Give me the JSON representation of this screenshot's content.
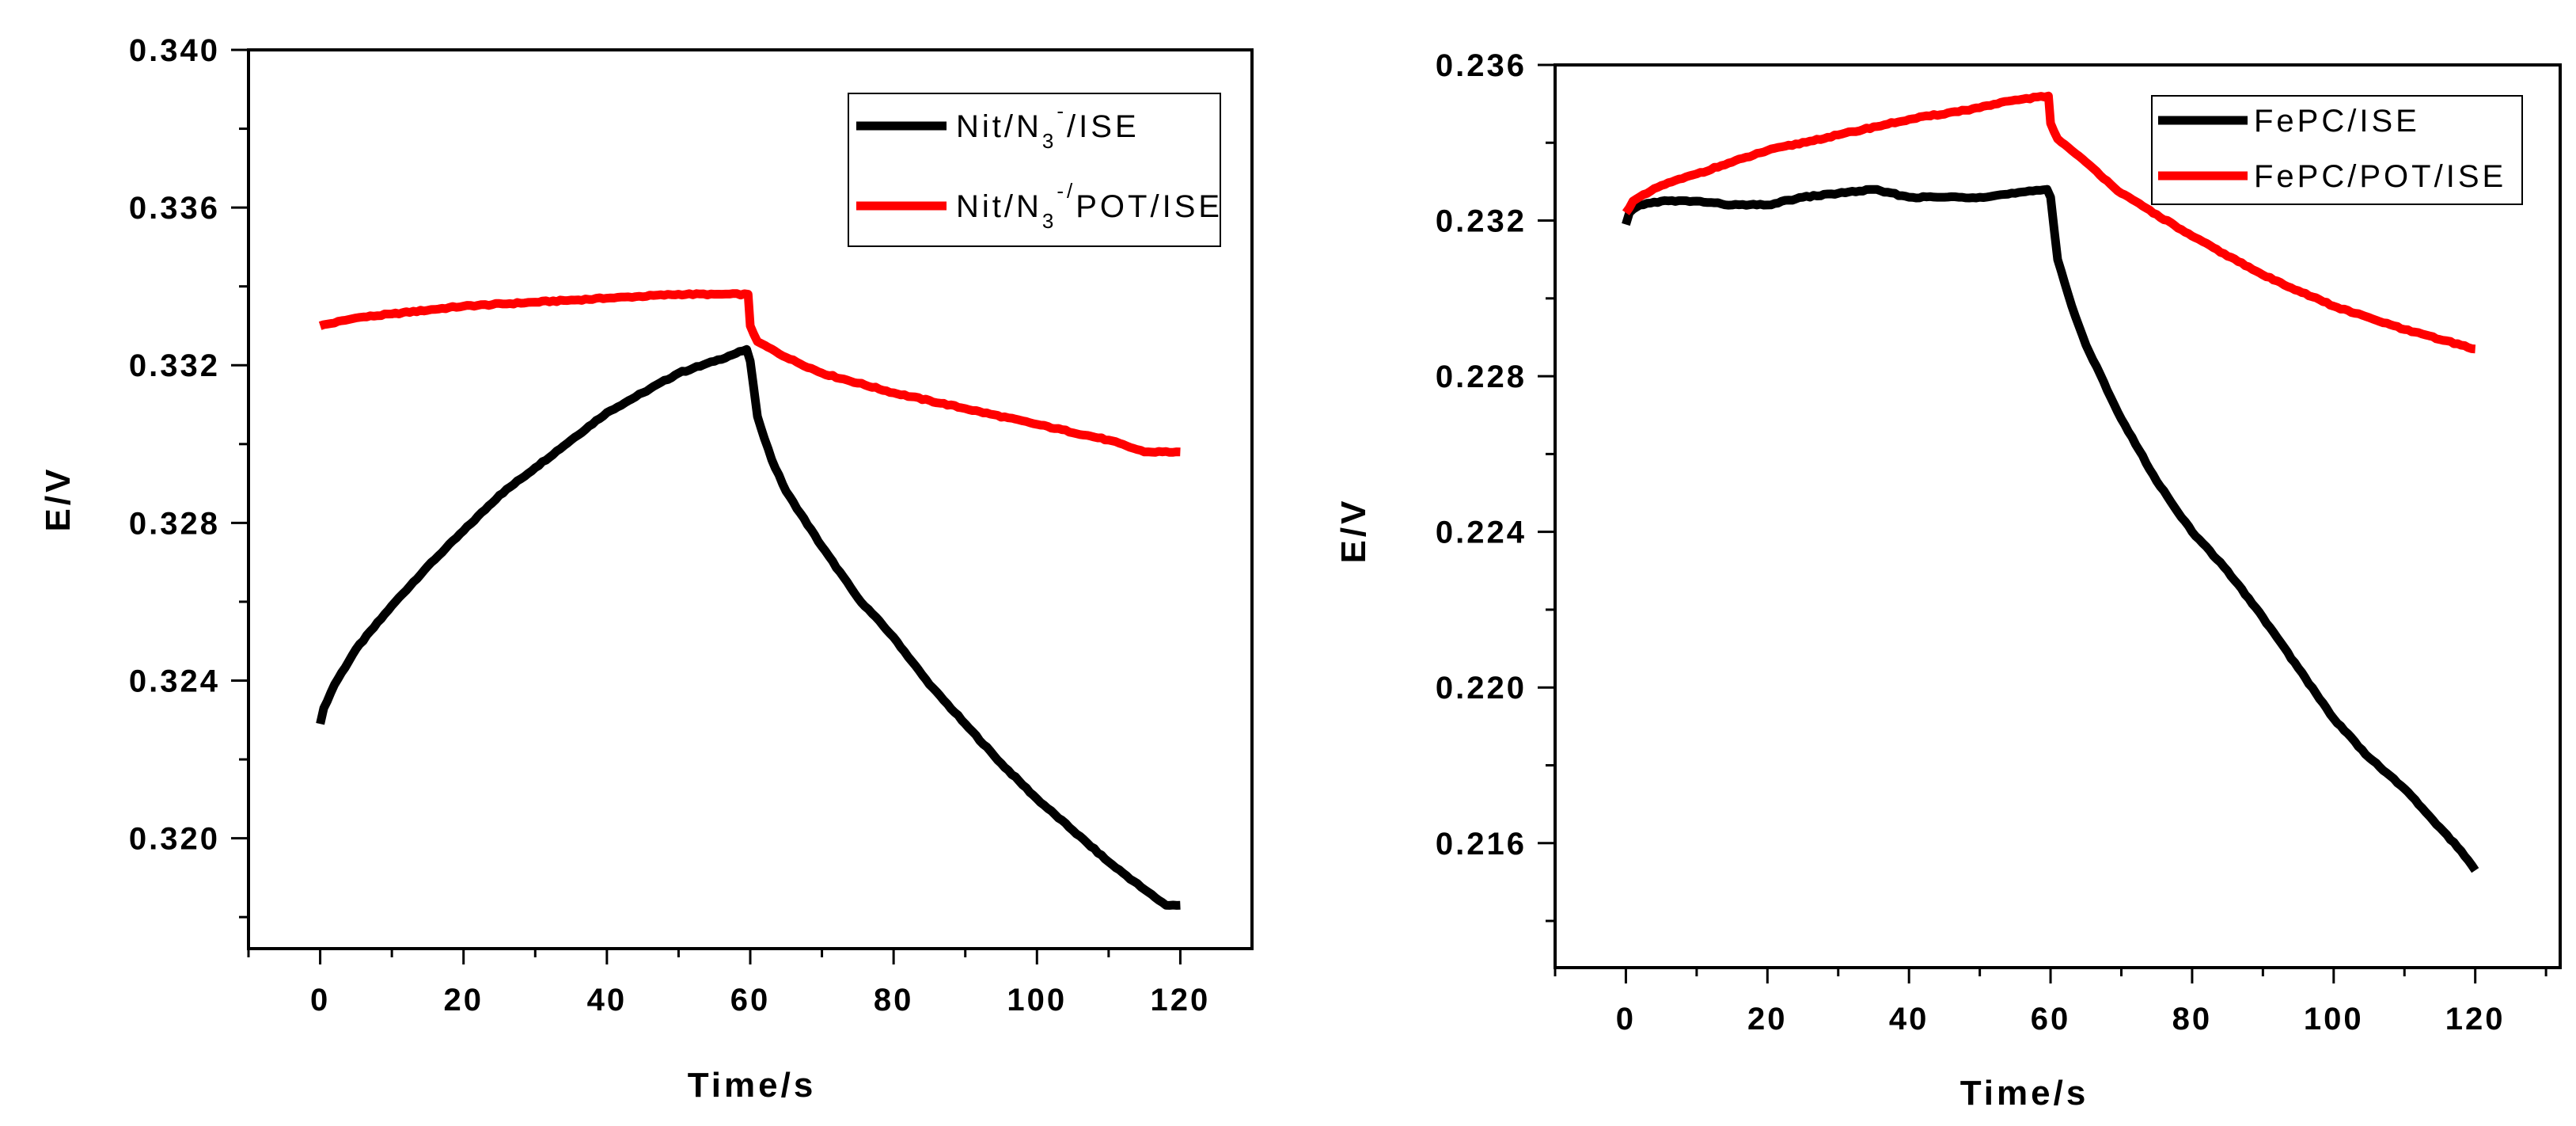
{
  "chart_data": [
    {
      "type": "line",
      "xlabel": "Time/s",
      "ylabel": "E/V",
      "xlim": [
        -10,
        130
      ],
      "ylim": [
        0.3172,
        0.34
      ],
      "xticks": [
        0,
        20,
        40,
        60,
        80,
        100,
        120
      ],
      "yticks": [
        0.32,
        0.324,
        0.328,
        0.332,
        0.336,
        0.34
      ],
      "xtick_labels": [
        "0",
        "20",
        "40",
        "60",
        "80",
        "100",
        "120"
      ],
      "ytick_labels": [
        "0.320",
        "0.324",
        "0.328",
        "0.332",
        "0.336",
        "0.340"
      ],
      "legend_position": "top-right",
      "series": [
        {
          "name": "Nit/N3-/ISE",
          "legend_parts": [
            "Nit/N",
            "3",
            "-",
            "/ISE"
          ],
          "color": "#000000",
          "x": [
            0,
            0.5,
            2,
            5,
            10,
            15,
            20,
            25,
            30,
            35,
            40,
            45,
            50,
            55,
            59.5,
            60,
            61,
            63,
            65,
            70,
            75,
            80,
            85,
            90,
            95,
            100,
            105,
            110,
            115,
            118,
            120
          ],
          "y": [
            0.3229,
            0.3233,
            0.3239,
            0.3248,
            0.3259,
            0.3269,
            0.3278,
            0.3287,
            0.3294,
            0.3301,
            0.3308,
            0.3313,
            0.3318,
            0.3321,
            0.3324,
            0.3321,
            0.3307,
            0.3296,
            0.3288,
            0.3274,
            0.3261,
            0.3251,
            0.3239,
            0.3229,
            0.3219,
            0.321,
            0.3202,
            0.3194,
            0.3187,
            0.3183,
            0.3183
          ]
        },
        {
          "name": "Nit/N3-/POT/ISE",
          "legend_parts": [
            "Nit/N",
            "3",
            "-/",
            "POT/ISE"
          ],
          "color": "#ff0000",
          "x": [
            0,
            5,
            10,
            20,
            30,
            40,
            50,
            55,
            59.7,
            60,
            61,
            65,
            70,
            80,
            90,
            100,
            110,
            115,
            120
          ],
          "y": [
            0.333,
            0.3332,
            0.3333,
            0.3335,
            0.3336,
            0.3337,
            0.3338,
            0.3338,
            0.3338,
            0.333,
            0.3326,
            0.3322,
            0.3318,
            0.3313,
            0.3309,
            0.3305,
            0.3301,
            0.3298,
            0.3298
          ]
        }
      ]
    },
    {
      "type": "line",
      "xlabel": "Time/s",
      "ylabel": "E/V",
      "xlim": [
        -10,
        132
      ],
      "ylim": [
        0.2128,
        0.236
      ],
      "xticks": [
        0,
        20,
        40,
        60,
        80,
        100,
        120
      ],
      "yticks": [
        0.216,
        0.22,
        0.224,
        0.228,
        0.232,
        0.236
      ],
      "xtick_labels": [
        "0",
        "20",
        "40",
        "60",
        "80",
        "100",
        "120"
      ],
      "ytick_labels": [
        "0.216",
        "0.220",
        "0.224",
        "0.228",
        "0.232",
        "0.236"
      ],
      "legend_position": "top-right",
      "series": [
        {
          "name": "FePC/ISE",
          "legend_parts": [
            "FePC/ISE"
          ],
          "color": "#000000",
          "x": [
            0,
            0.5,
            2,
            5,
            10,
            15,
            20,
            25,
            30,
            35,
            40,
            45,
            50,
            55,
            59.5,
            60,
            61,
            63,
            65,
            70,
            75,
            80,
            85,
            90,
            95,
            100,
            105,
            110,
            115,
            118,
            120
          ],
          "y": [
            0.2319,
            0.2322,
            0.2324,
            0.2325,
            0.2325,
            0.2324,
            0.2324,
            0.2326,
            0.2327,
            0.2328,
            0.2326,
            0.2326,
            0.2326,
            0.2327,
            0.2328,
            0.2326,
            0.231,
            0.2298,
            0.2288,
            0.2269,
            0.2253,
            0.224,
            0.223,
            0.2218,
            0.2205,
            0.2192,
            0.2182,
            0.2174,
            0.2164,
            0.2158,
            0.2153
          ]
        },
        {
          "name": "FePC/POT/ISE",
          "legend_parts": [
            "FePC/POT/ISE"
          ],
          "color": "#ff0000",
          "x": [
            0,
            1,
            3,
            5,
            10,
            20,
            30,
            40,
            50,
            55,
            59.7,
            60,
            61,
            63,
            65,
            70,
            80,
            90,
            100,
            110,
            120
          ],
          "y": [
            0.2322,
            0.2325,
            0.2327,
            0.2329,
            0.2332,
            0.2338,
            0.2342,
            0.2346,
            0.2349,
            0.2351,
            0.2352,
            0.2345,
            0.2341,
            0.2338,
            0.2335,
            0.2327,
            0.2316,
            0.2306,
            0.2298,
            0.2292,
            0.2287
          ]
        }
      ]
    }
  ]
}
